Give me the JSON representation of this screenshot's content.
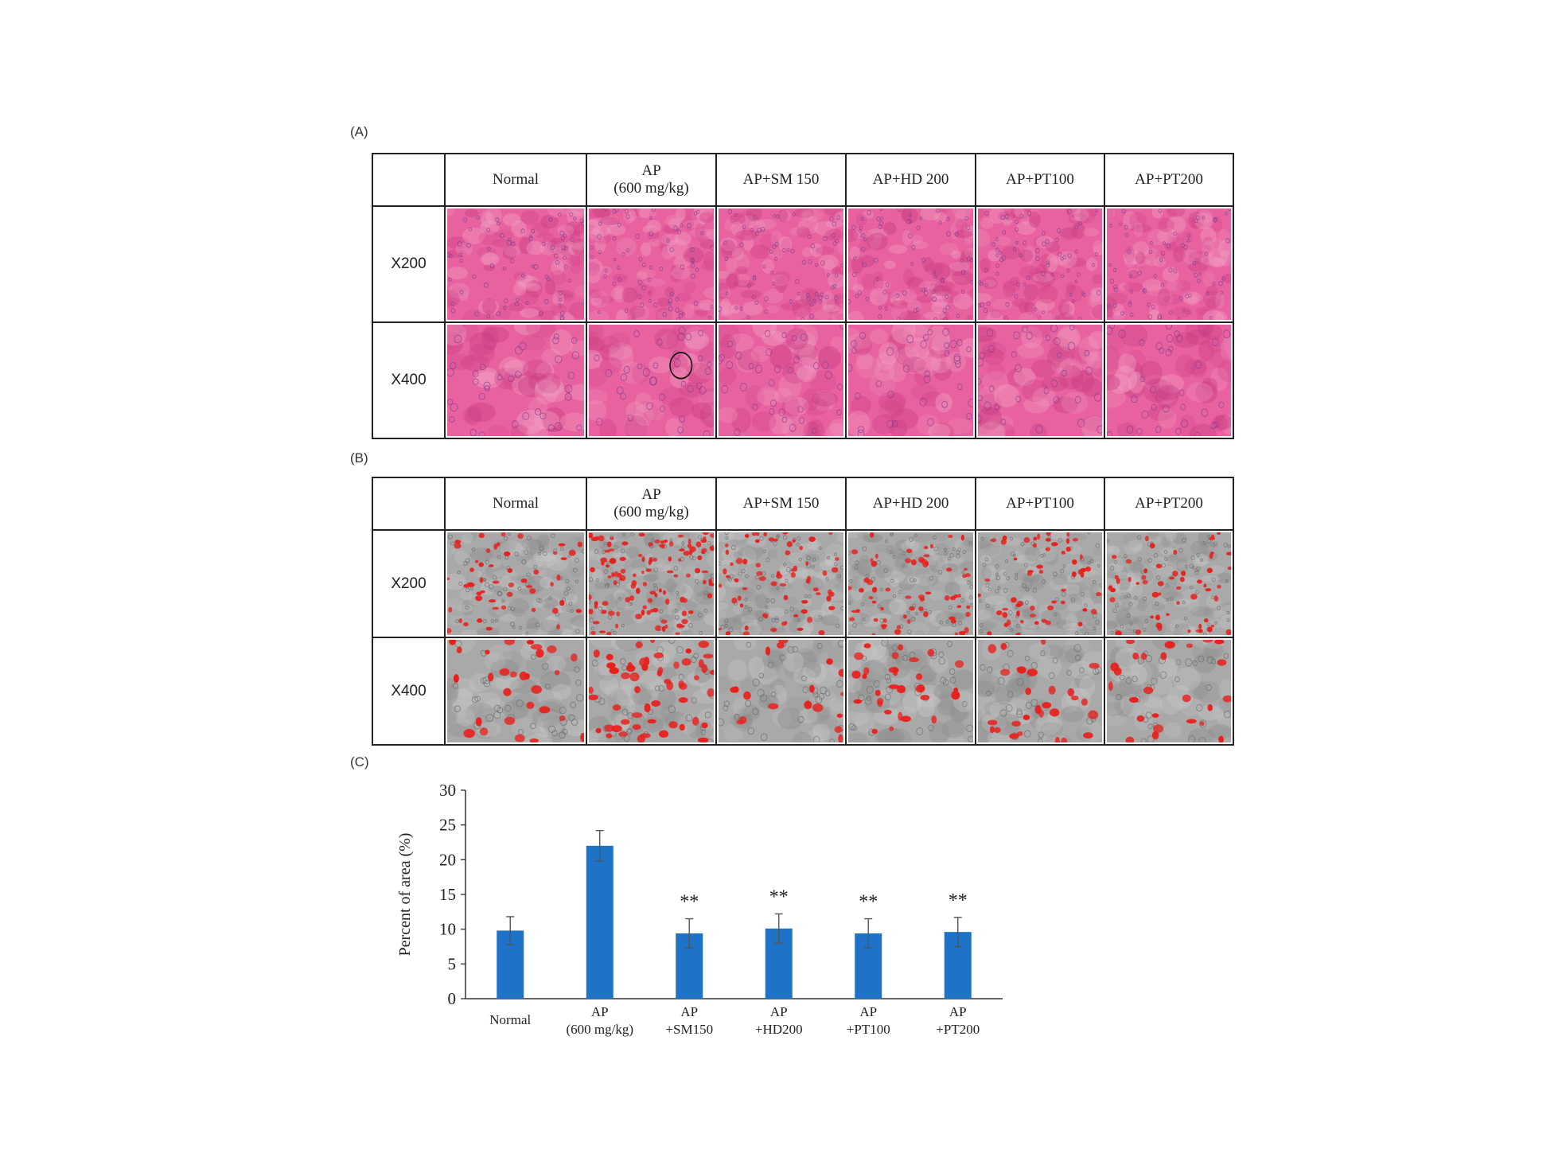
{
  "panels": {
    "a_label": "(A)",
    "b_label": "(B)",
    "c_label": "(C)"
  },
  "table": {
    "columns": [
      {
        "line1": "Normal",
        "line2": ""
      },
      {
        "line1": "AP",
        "line2": "(600 mg/kg)"
      },
      {
        "line1": "AP+SM 150",
        "line2": ""
      },
      {
        "line1": "AP+HD  200",
        "line2": ""
      },
      {
        "line1": "AP+PT100",
        "line2": ""
      },
      {
        "line1": "AP+PT200",
        "line2": ""
      }
    ],
    "rows": [
      "X200",
      "X400"
    ]
  },
  "colors": {
    "he_stain": "#e8629f",
    "he_dark": "#c93c80",
    "marked": "#e8201c",
    "gray_tissue": "#a9a9a9",
    "bar": "#1e72c8"
  },
  "chart_data": {
    "type": "bar",
    "categories": [
      [
        "Normal"
      ],
      [
        "AP",
        "(600 mg/kg)"
      ],
      [
        "AP",
        "+SM150"
      ],
      [
        "AP",
        "+HD200"
      ],
      [
        "AP",
        "+PT100"
      ],
      [
        "AP",
        "+PT200"
      ]
    ],
    "values": [
      9.8,
      22.0,
      9.4,
      10.1,
      9.4,
      9.6
    ],
    "errors": [
      2.0,
      2.2,
      2.1,
      2.1,
      2.1,
      2.1
    ],
    "significance": [
      "",
      "",
      "**",
      "**",
      "**",
      "**"
    ],
    "ylabel": "Percent of area (%)",
    "ylim": [
      0,
      30
    ],
    "yticks": [
      0,
      5,
      10,
      15,
      20,
      25,
      30
    ],
    "grid": false,
    "legend": "none"
  }
}
